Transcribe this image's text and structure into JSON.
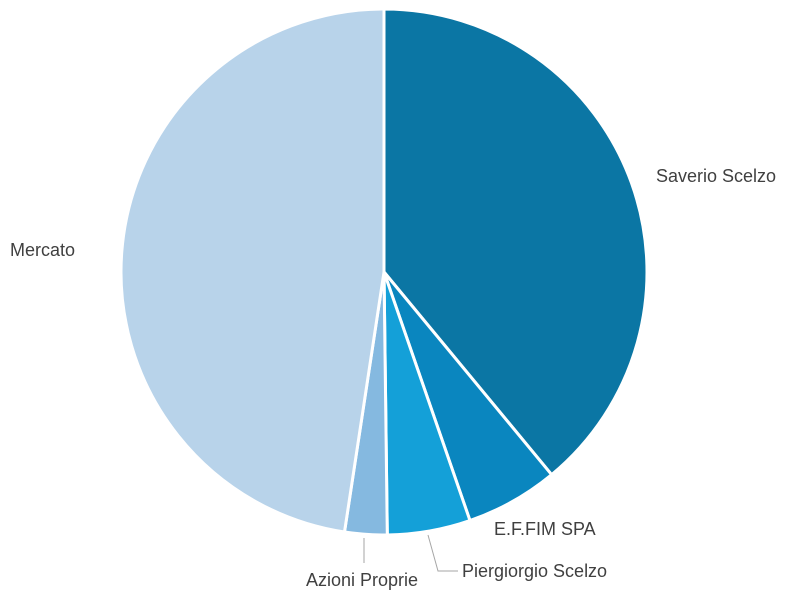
{
  "chart_data": {
    "type": "pie",
    "title": "",
    "slices": [
      {
        "label": "Saverio Scelzo",
        "value": 39.0,
        "color": "#0b76a4"
      },
      {
        "label": "E.F.FIM SPA",
        "value": 5.7,
        "color": "#0a86bf"
      },
      {
        "label": "Piergiorgio Scelzo",
        "value": 5.1,
        "color": "#14a0d8"
      },
      {
        "label": "Azioni Proprie",
        "value": 2.6,
        "color": "#85b9e0"
      },
      {
        "label": "Mercato",
        "value": 47.6,
        "color": "#b8d3ea"
      }
    ],
    "start_angle_deg": 0,
    "direction": "clockwise",
    "legend": "none"
  }
}
